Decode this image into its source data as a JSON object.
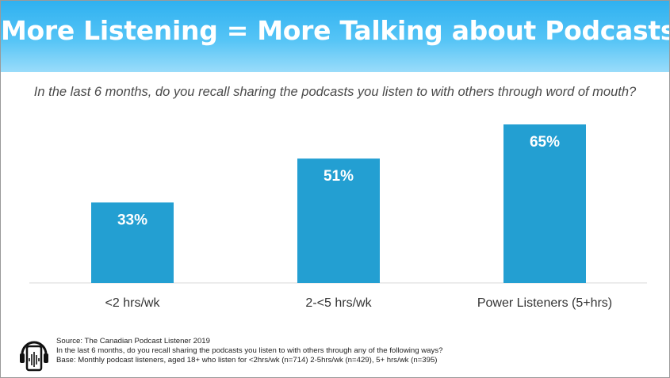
{
  "header": {
    "title": "More Listening = More Talking about Podcasts",
    "question": "In the last 6 months, do you recall sharing the podcasts you listen to with others through word of mouth?"
  },
  "colors": {
    "bar": "#239fd2",
    "banner_top": "#2fb1f0",
    "banner_bottom": "#9adcfa",
    "bar_label": "#ffffff"
  },
  "chart_data": {
    "type": "bar",
    "categories": [
      "<2 hrs/wk",
      "2-<5 hrs/wk",
      "Power Listeners (5+hrs)"
    ],
    "values": [
      33,
      51,
      65
    ],
    "value_labels": [
      "33%",
      "51%",
      "65%"
    ],
    "title": "",
    "xlabel": "",
    "ylabel": "",
    "ylim": [
      0,
      65
    ],
    "grid": false,
    "legend": "none"
  },
  "footer": {
    "icon": "headphones-phone-icon",
    "source": "Source: The Canadian Podcast Listener 2019",
    "question": "In the last 6 months, do you recall sharing the podcasts you listen to with others through any of the following ways?",
    "base": "Base: Monthly podcast listeners, aged 18+ who listen for <2hrs/wk (n=714) 2-5hrs/wk (n=429), 5+ hrs/wk (n=395)"
  }
}
